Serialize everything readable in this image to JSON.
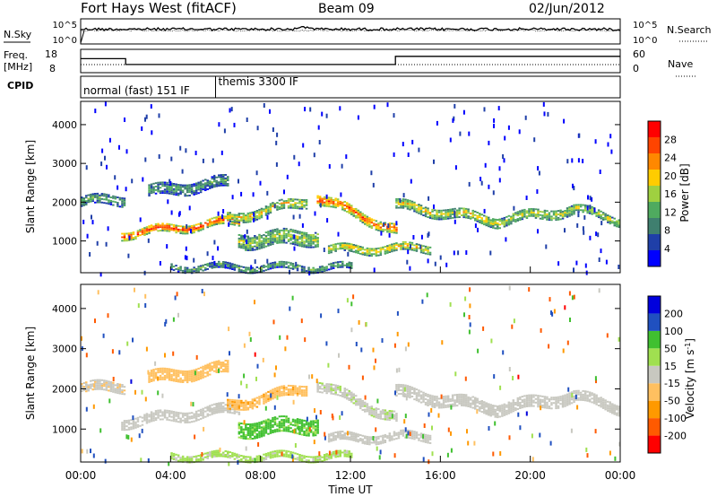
{
  "header": {
    "station": "Fort Hays West (fitACF)",
    "beam": "Beam 09",
    "date": "02/Jun/2012"
  },
  "noise_panel": {
    "left_label": "N.Sky",
    "right_label": "N.Search",
    "left_ticks": [
      "10^5",
      "10^0"
    ],
    "right_ticks": [
      "10^5",
      "10^0"
    ]
  },
  "freq_panel": {
    "left_label_top": "Freq.",
    "left_label_unit": "[MHz]",
    "right_label": "Nave",
    "left_ticks": [
      "18",
      "8"
    ],
    "right_ticks": [
      "60",
      "0"
    ],
    "freq_steps": [
      {
        "t0": 0,
        "t1": 2.0,
        "mhz": 14
      },
      {
        "t0": 2.0,
        "t1": 14.0,
        "mhz": 11.5
      },
      {
        "t0": 14.0,
        "t1": 24.0,
        "mhz": 15
      }
    ]
  },
  "cpid_panel": {
    "label": "CPID",
    "modes": [
      {
        "t0": 0,
        "t1": 6.0,
        "name": "normal (fast) 151 IF"
      },
      {
        "t0": 6.0,
        "t1": 24.0,
        "name": "themis 3300 IF"
      }
    ]
  },
  "colors": {
    "power_scale": [
      "#0000ff",
      "#1f3fa8",
      "#3f7f6f",
      "#4faa5f",
      "#9fd040",
      "#ffcc00",
      "#ff8800",
      "#ff4400",
      "#ff0000"
    ],
    "velocity_scale": [
      "#ff0000",
      "#ff5a00",
      "#ff9900",
      "#ffc060",
      "#c8c8c0",
      "#a0e050",
      "#40c030",
      "#2050c0",
      "#0000dd"
    ]
  },
  "chart_data": [
    {
      "type": "heatmap",
      "name": "power",
      "ylabel": "Slant Range [km]",
      "xlabel": "Time UT",
      "x_ticks": [
        "00:00",
        "04:00",
        "08:00",
        "12:00",
        "16:00",
        "20:00",
        "00:00"
      ],
      "xlim_hours": [
        0,
        24
      ],
      "y_ticks": [
        "1000",
        "2000",
        "3000",
        "4000"
      ],
      "ylim_km": [
        180,
        4600
      ],
      "colorbar_label": "Power [dB]",
      "colorbar_ticks": [
        "4",
        "8",
        "12",
        "16",
        "20",
        "24",
        "28"
      ],
      "bands": [
        {
          "t": [
            0.0,
            2.0
          ],
          "r0": [
            2000,
            2050
          ],
          "width": 250,
          "level": 0.4
        },
        {
          "t": [
            1.8,
            7.0
          ],
          "r0": [
            1150,
            1500
          ],
          "width": 200,
          "level": 0.9
        },
        {
          "t": [
            6.5,
            10.0
          ],
          "r0": [
            1550,
            2000
          ],
          "width": 250,
          "level": 0.6
        },
        {
          "t": [
            3.0,
            6.5
          ],
          "r0": [
            2250,
            2500
          ],
          "width": 300,
          "level": 0.35
        },
        {
          "t": [
            7.0,
            10.5
          ],
          "r0": [
            1000,
            1100
          ],
          "width": 400,
          "level": 0.5
        },
        {
          "t": [
            10.5,
            14.0
          ],
          "r0": [
            2100,
            1250
          ],
          "width": 250,
          "level": 0.85
        },
        {
          "t": [
            11.0,
            15.5
          ],
          "r0": [
            750,
            800
          ],
          "width": 200,
          "level": 0.65
        },
        {
          "t": [
            14.0,
            18.5
          ],
          "r0": [
            1900,
            1500
          ],
          "width": 250,
          "level": 0.6
        },
        {
          "t": [
            18.5,
            22.0
          ],
          "r0": [
            1500,
            1800
          ],
          "width": 250,
          "level": 0.55
        },
        {
          "t": [
            22.0,
            24.0
          ],
          "r0": [
            1800,
            1500
          ],
          "width": 200,
          "level": 0.55
        },
        {
          "t": [
            4.0,
            12.0
          ],
          "r0": [
            300,
            300
          ],
          "width": 150,
          "level": 0.4
        }
      ]
    },
    {
      "type": "heatmap",
      "name": "velocity",
      "ylabel": "Slant Range [km]",
      "xlabel": "Time UT",
      "x_ticks": [
        "00:00",
        "04:00",
        "08:00",
        "12:00",
        "16:00",
        "20:00",
        "00:00"
      ],
      "xlim_hours": [
        0,
        24
      ],
      "y_ticks": [
        "1000",
        "2000",
        "3000",
        "4000"
      ],
      "ylim_km": [
        180,
        4600
      ],
      "colorbar_label": "Velocity [m s^-1]",
      "colorbar_ticks": [
        "200",
        "100",
        "50",
        "15",
        "-15",
        "-50",
        "-100",
        "-200"
      ],
      "bands": [
        {
          "t": [
            0.0,
            2.0
          ],
          "r0": [
            2000,
            2050
          ],
          "width": 250,
          "vel": -5
        },
        {
          "t": [
            1.8,
            7.0
          ],
          "r0": [
            1150,
            1500
          ],
          "width": 250,
          "vel": 0
        },
        {
          "t": [
            6.5,
            10.0
          ],
          "r0": [
            1550,
            2000
          ],
          "width": 250,
          "vel": -40
        },
        {
          "t": [
            3.0,
            6.5
          ],
          "r0": [
            2250,
            2500
          ],
          "width": 300,
          "vel": -30
        },
        {
          "t": [
            7.0,
            10.5
          ],
          "r0": [
            1000,
            1100
          ],
          "width": 400,
          "vel": 60
        },
        {
          "t": [
            10.5,
            14.0
          ],
          "r0": [
            2100,
            1250
          ],
          "width": 250,
          "vel": 5
        },
        {
          "t": [
            11.0,
            15.5
          ],
          "r0": [
            750,
            800
          ],
          "width": 200,
          "vel": 0
        },
        {
          "t": [
            14.0,
            18.5
          ],
          "r0": [
            1900,
            1500
          ],
          "width": 300,
          "vel": 0
        },
        {
          "t": [
            18.5,
            22.0
          ],
          "r0": [
            1500,
            1800
          ],
          "width": 300,
          "vel": 0
        },
        {
          "t": [
            22.0,
            24.0
          ],
          "r0": [
            1800,
            1500
          ],
          "width": 250,
          "vel": 0
        },
        {
          "t": [
            4.0,
            12.0
          ],
          "r0": [
            300,
            300
          ],
          "width": 150,
          "vel": 25
        }
      ]
    }
  ]
}
